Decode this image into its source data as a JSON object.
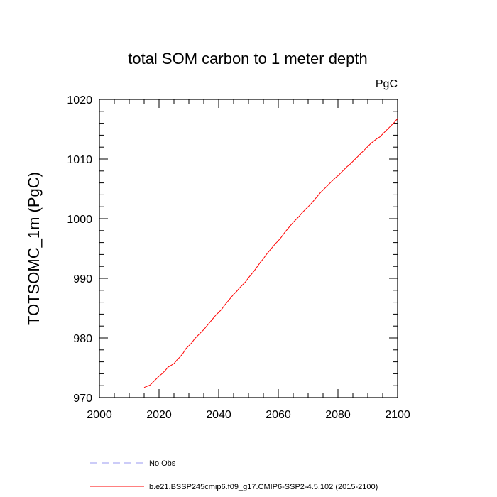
{
  "chart_data": {
    "type": "line",
    "title": "total SOM carbon to 1 meter depth",
    "units_label": "PgC",
    "xlabel": "",
    "ylabel": "TOTSOMC_1m  (PgC)",
    "xlim": [
      2000,
      2100
    ],
    "ylim": [
      970,
      1020
    ],
    "x_major_ticks": [
      2000,
      2020,
      2040,
      2060,
      2080,
      2100
    ],
    "x_minor_step": 5,
    "y_major_ticks": [
      970,
      980,
      990,
      1000,
      1010,
      1020
    ],
    "y_minor_step": 2,
    "grid": false,
    "legend_position": "bottom",
    "series": [
      {
        "name": "No Obs",
        "color": "#9a9af0",
        "dash": "dashed",
        "x": [],
        "y": []
      },
      {
        "name": "b.e21.BSSP245cmip6.f09_g17.CMIP6-SSP2-4.5.102 (2015-2100)",
        "color": "#ff0000",
        "dash": "solid",
        "x": [
          2015,
          2016,
          2017,
          2018,
          2019,
          2020,
          2021,
          2022,
          2023,
          2024,
          2025,
          2026,
          2027,
          2028,
          2029,
          2030,
          2031,
          2032,
          2033,
          2034,
          2035,
          2036,
          2037,
          2038,
          2039,
          2040,
          2041,
          2042,
          2043,
          2044,
          2045,
          2046,
          2047,
          2048,
          2049,
          2050,
          2051,
          2052,
          2053,
          2054,
          2055,
          2056,
          2057,
          2058,
          2059,
          2060,
          2061,
          2062,
          2063,
          2064,
          2065,
          2066,
          2067,
          2068,
          2069,
          2070,
          2071,
          2072,
          2073,
          2074,
          2075,
          2076,
          2077,
          2078,
          2079,
          2080,
          2081,
          2082,
          2083,
          2084,
          2085,
          2086,
          2087,
          2088,
          2089,
          2090,
          2091,
          2092,
          2093,
          2094,
          2095,
          2096,
          2097,
          2098,
          2099,
          2100
        ],
        "y": [
          971.7,
          971.9,
          972.1,
          972.6,
          973.1,
          973.6,
          974.0,
          974.5,
          975.1,
          975.4,
          975.7,
          976.3,
          976.8,
          977.4,
          978.2,
          978.7,
          979.2,
          979.9,
          980.4,
          980.9,
          981.4,
          982.0,
          982.6,
          983.2,
          983.8,
          984.3,
          984.8,
          985.5,
          986.1,
          986.7,
          987.3,
          987.8,
          988.4,
          988.9,
          989.4,
          990.1,
          990.7,
          991.3,
          992.0,
          992.7,
          993.3,
          994.0,
          994.6,
          995.2,
          995.8,
          996.3,
          996.9,
          997.6,
          998.2,
          998.8,
          999.4,
          999.9,
          1000.4,
          1001.0,
          1001.5,
          1002.0,
          1002.5,
          1003.1,
          1003.7,
          1004.3,
          1004.8,
          1005.3,
          1005.8,
          1006.3,
          1006.8,
          1007.2,
          1007.7,
          1008.2,
          1008.7,
          1009.1,
          1009.6,
          1010.1,
          1010.6,
          1011.1,
          1011.6,
          1012.1,
          1012.6,
          1013.0,
          1013.4,
          1013.7,
          1014.2,
          1014.7,
          1015.2,
          1015.7,
          1016.2,
          1016.8
        ]
      }
    ]
  }
}
